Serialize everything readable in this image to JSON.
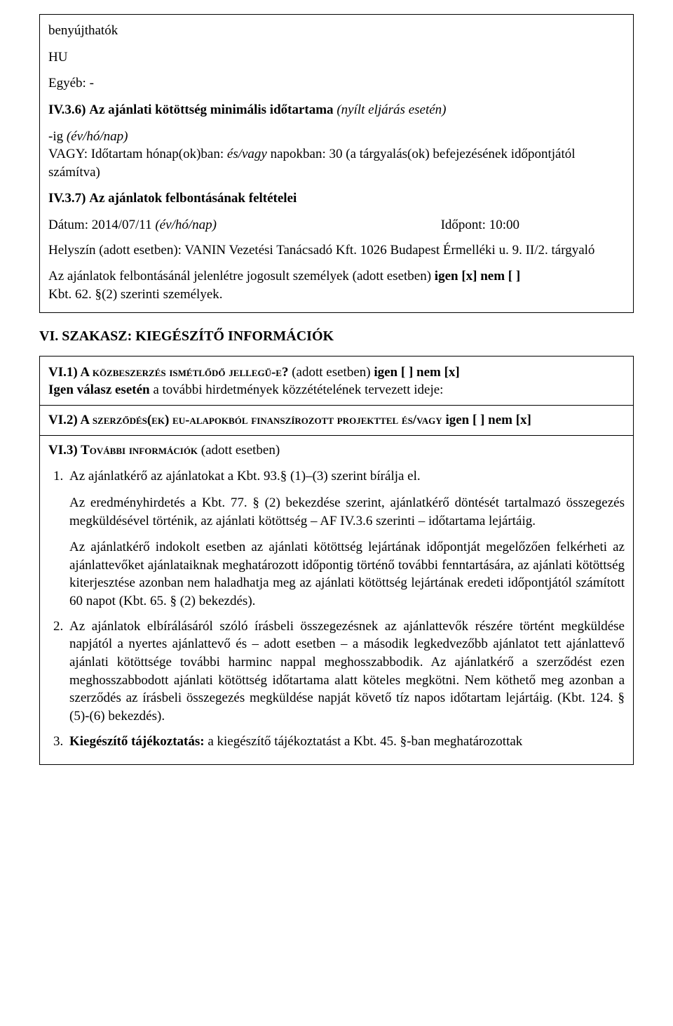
{
  "box1": {
    "line1": "benyújthatók",
    "line2": "HU",
    "line3": "Egyéb: -",
    "iv36_label": "IV.3.6)",
    "iv36_title": "Az ajánlati kötöttség minimális időtartama ",
    "iv36_title_it": "(nyílt eljárás esetén)",
    "iv36_a_1": "-ig ",
    "iv36_a_2": "(év/hó/nap)",
    "iv36_b_1": "VAGY: Időtartam hónap(ok)ban: ",
    "iv36_b_2": "és/vagy",
    "iv36_b_3": " napokban: 30 (a tárgyalás(ok) befejezésének időpontjától számítva)",
    "iv37_label": "IV.3.7)",
    "iv37_title": "Az ajánlatok felbontásának feltételei",
    "datum_1": "Dátum: 2014/07/11 ",
    "datum_2": "(év/hó/nap)",
    "idopont": "Időpont: 10:00",
    "helyszin": "Helyszín (adott esetben): VANIN Vezetési Tanácsadó Kft. 1026 Budapest Érmelléki u. 9. II/2. tárgyaló",
    "jogosult_1": "Az ajánlatok felbontásánál jelenlétre jogosult személyek (adott esetben) ",
    "jogosult_2": "igen [x] nem [ ]",
    "kbt62": "Kbt. 62. §(2) szerinti személyek."
  },
  "sectionVI": "VI. SZAKASZ: KIEGÉSZÍTŐ INFORMÁCIÓK",
  "box2": {
    "vi1_label": "VI.1)",
    "vi1_sc": " A közbeszerzés ismétlődő jellegű-e?",
    "vi1_rest_1": " (adott esetben) ",
    "vi1_rest_2": "igen [ ] nem [x]",
    "vi1_line2_1": "Igen válasz esetén",
    "vi1_line2_2": " a további hirdetmények közzétételének tervezett ideje:",
    "vi2_label": "VI.2)",
    "vi2_sc": " A szerződés(ek) eu-alapokból finanszírozott projekttel és/vagy ",
    "vi2_rest": "igen [ ] nem [x]",
    "vi3_label": "VI.3)",
    "vi3_sc": " További információk",
    "vi3_rest": " (adott esetben)",
    "li1_a": "Az ajánlatkérő az ajánlatokat a Kbt. 93.§ (1)–(3) szerint bírálja el.",
    "li1_b": "Az eredményhirdetés a Kbt. 77. § (2) bekezdése szerint, ajánlatkérő döntését tartalmazó összegezés megküldésével történik, az ajánlati kötöttség – AF IV.3.6 szerinti – időtartama lejártáig.",
    "li1_c": "Az ajánlatkérő indokolt esetben az ajánlati kötöttség lejártának időpontját megelőzően felkérheti az ajánlattevőket ajánlataiknak meghatározott időpontig történő további fenntartására, az ajánlati kötöttség kiterjesztése azonban nem haladhatja meg az ajánlati kötöttség lejártának eredeti időpontjától számított 60 napot (Kbt. 65. § (2) bekezdés).",
    "li2": "Az ajánlatok elbírálásáról szóló írásbeli összegezésnek az ajánlattevők részére történt megküldése napjától a nyertes ajánlattevő és – adott esetben – a második legkedvezőbb ajánlatot tett ajánlattevő ajánlati kötöttsége további harminc nappal meghosszabbodik. Az ajánlatkérő a szerződést ezen meghosszabbodott ajánlati kötöttség időtartama alatt köteles megkötni. Nem köthető meg azonban a szerződés az írásbeli összegezés megküldése napját követő tíz napos időtartam lejártáig. (Kbt. 124. § (5)-(6) bekezdés).",
    "li3_b": "Kiegészítő tájékoztatás:",
    "li3_r": " a kiegészítő tájékoztatást a Kbt. 45. §-ban meghatározottak"
  }
}
